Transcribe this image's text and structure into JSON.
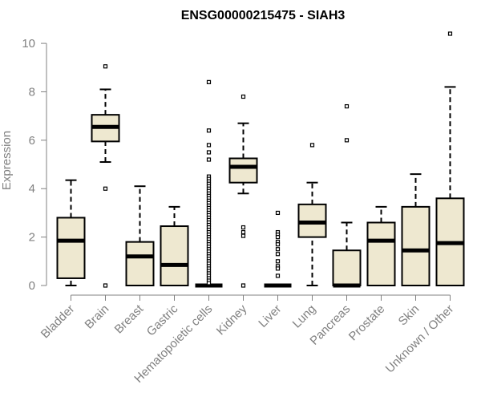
{
  "chart_data": {
    "type": "box",
    "title": "ENSG00000215475 - SIAH3",
    "xlabel": "",
    "ylabel": "Expression",
    "ylim": [
      0,
      10.4
    ],
    "yticks": [
      0,
      2,
      4,
      6,
      8,
      10
    ],
    "grid": false,
    "legend": "none",
    "box_color": "#EEE8D0",
    "categories": [
      "Bladder",
      "Brain",
      "Breast",
      "Gastric",
      "Hematopoietic cells",
      "Kidney",
      "Liver",
      "Lung",
      "Pancreas",
      "Prostate",
      "Skin",
      "Unknown / Other"
    ],
    "boxes": [
      {
        "whisker_low": 0.0,
        "q1": 0.3,
        "median": 1.85,
        "q3": 2.8,
        "whisker_high": 4.35,
        "outliers": []
      },
      {
        "whisker_low": 5.1,
        "q1": 5.95,
        "median": 6.55,
        "q3": 7.05,
        "whisker_high": 8.1,
        "outliers": [
          9.05,
          4.0,
          0.0
        ]
      },
      {
        "whisker_low": 0.0,
        "q1": 0.0,
        "median": 1.2,
        "q3": 1.8,
        "whisker_high": 4.1,
        "outliers": []
      },
      {
        "whisker_low": 0.0,
        "q1": 0.0,
        "median": 0.85,
        "q3": 2.45,
        "whisker_high": 3.25,
        "outliers": []
      },
      {
        "whisker_low": 0.0,
        "q1": 0.0,
        "median": 0.0,
        "q3": 0.0,
        "whisker_high": 0.0,
        "outliers": [
          8.4,
          6.4,
          5.8,
          5.5,
          5.2,
          4.5,
          4.4,
          4.3,
          4.2,
          4.1,
          4.0,
          3.9,
          3.8,
          3.7,
          3.6,
          3.5,
          3.4,
          3.3,
          3.2,
          3.1,
          3.0,
          2.9,
          2.8,
          2.7,
          2.6,
          2.5,
          2.4,
          2.3,
          2.2,
          2.1,
          2.0,
          1.9,
          1.8,
          1.7,
          1.6,
          1.5,
          1.4,
          1.3,
          1.2,
          1.1,
          1.0,
          0.9,
          0.8,
          0.7,
          0.6,
          0.5,
          0.4,
          0.3,
          0.2,
          0.1
        ]
      },
      {
        "whisker_low": 3.8,
        "q1": 4.25,
        "median": 4.9,
        "q3": 5.25,
        "whisker_high": 6.7,
        "outliers": [
          7.8,
          2.4,
          2.2,
          2.05,
          0.0
        ]
      },
      {
        "whisker_low": 0.0,
        "q1": 0.0,
        "median": 0.0,
        "q3": 0.0,
        "whisker_high": 0.0,
        "outliers": [
          3.0,
          2.2,
          2.1,
          2.0,
          1.8,
          1.7,
          1.5,
          1.3,
          1.0,
          0.8,
          0.7,
          0.4
        ]
      },
      {
        "whisker_low": 0.0,
        "q1": 2.0,
        "median": 2.6,
        "q3": 3.35,
        "whisker_high": 4.25,
        "outliers": [
          5.8
        ]
      },
      {
        "whisker_low": 0.0,
        "q1": 0.0,
        "median": 0.0,
        "q3": 1.45,
        "whisker_high": 2.6,
        "outliers": [
          7.4,
          6.0
        ]
      },
      {
        "whisker_low": 0.0,
        "q1": 0.0,
        "median": 1.85,
        "q3": 2.6,
        "whisker_high": 3.25,
        "outliers": []
      },
      {
        "whisker_low": 0.0,
        "q1": 0.0,
        "median": 1.45,
        "q3": 3.25,
        "whisker_high": 4.6,
        "outliers": []
      },
      {
        "whisker_low": 0.0,
        "q1": 0.0,
        "median": 1.75,
        "q3": 3.6,
        "whisker_high": 8.2,
        "outliers": [
          10.4
        ]
      }
    ]
  }
}
